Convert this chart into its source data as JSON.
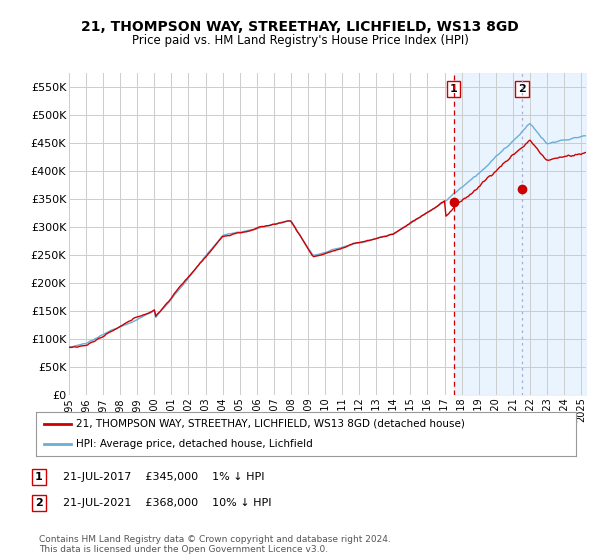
{
  "title": "21, THOMPSON WAY, STREETHAY, LICHFIELD, WS13 8GD",
  "subtitle": "Price paid vs. HM Land Registry's House Price Index (HPI)",
  "ylabel_ticks": [
    "£0",
    "£50K",
    "£100K",
    "£150K",
    "£200K",
    "£250K",
    "£300K",
    "£350K",
    "£400K",
    "£450K",
    "£500K",
    "£550K"
  ],
  "ytick_values": [
    0,
    50000,
    100000,
    150000,
    200000,
    250000,
    300000,
    350000,
    400000,
    450000,
    500000,
    550000
  ],
  "ylim": [
    0,
    575000
  ],
  "xlim_start": 1995.0,
  "xlim_end": 2025.3,
  "hpi_color": "#6baed6",
  "price_color": "#cc0000",
  "marker1_date": 2017.54,
  "marker1_price": 345000,
  "marker1_label": "1",
  "marker1_text": "21-JUL-2017    £345,000    1% ↓ HPI",
  "marker2_date": 2021.54,
  "marker2_price": 368000,
  "marker2_label": "2",
  "marker2_text": "21-JUL-2021    £368,000    10% ↓ HPI",
  "legend_line1": "21, THOMPSON WAY, STREETHAY, LICHFIELD, WS13 8GD (detached house)",
  "legend_line2": "HPI: Average price, detached house, Lichfield",
  "footer": "Contains HM Land Registry data © Crown copyright and database right 2024.\nThis data is licensed under the Open Government Licence v3.0.",
  "background_color": "#ffffff",
  "plot_bg_color": "#ffffff",
  "grid_color": "#cccccc",
  "shade_color": "#ddeeff",
  "annotation_box_color": "#cc0000"
}
